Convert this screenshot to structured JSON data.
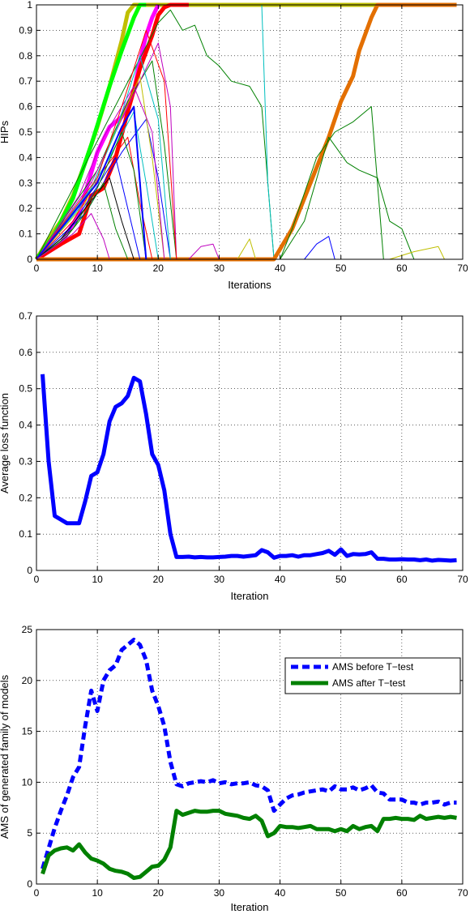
{
  "chart_data": [
    {
      "type": "line",
      "xlabel": "Iterations",
      "ylabel": "HIPs",
      "xlim": [
        0,
        70
      ],
      "ylim": [
        0,
        1
      ],
      "xticks": [
        "0",
        "10",
        "20",
        "30",
        "40",
        "50",
        "60",
        "70"
      ],
      "yticks": [
        "0",
        "0.1",
        "0.2",
        "0.3",
        "0.4",
        "0.5",
        "0.6",
        "0.7",
        "0.8",
        "0.9",
        "1"
      ],
      "grid": true,
      "series": [
        {
          "color": "#bfbf00",
          "width": 5,
          "x": [
            0,
            2,
            4,
            6,
            8,
            10,
            12,
            14,
            15,
            16,
            18,
            20,
            25,
            30,
            40,
            50,
            60,
            69
          ],
          "y": [
            0,
            0.08,
            0.15,
            0.25,
            0.38,
            0.52,
            0.68,
            0.86,
            0.97,
            1,
            1,
            1,
            1,
            1,
            1,
            1,
            1,
            1
          ]
        },
        {
          "color": "#00ff00",
          "width": 5,
          "x": [
            0,
            3,
            6,
            9,
            12,
            14,
            16,
            17,
            18
          ],
          "y": [
            0,
            0.1,
            0.24,
            0.45,
            0.68,
            0.82,
            0.95,
            1,
            1
          ]
        },
        {
          "color": "#ff00ff",
          "width": 5,
          "x": [
            0,
            4,
            7,
            10,
            12,
            14,
            16,
            17,
            18,
            19,
            20
          ],
          "y": [
            0,
            0.06,
            0.18,
            0.42,
            0.52,
            0.56,
            0.66,
            0.78,
            0.88,
            0.95,
            1
          ]
        },
        {
          "color": "#ff0000",
          "width": 5,
          "x": [
            0,
            4,
            7,
            9,
            11,
            13,
            15,
            17,
            19,
            20,
            21,
            22,
            25
          ],
          "y": [
            0,
            0.06,
            0.1,
            0.25,
            0.28,
            0.4,
            0.58,
            0.75,
            0.88,
            0.96,
            0.99,
            1,
            1
          ]
        },
        {
          "color": "#008000",
          "width": 1,
          "x": [
            0,
            20,
            22,
            24,
            26,
            28,
            30,
            32,
            35,
            37,
            38,
            39
          ],
          "y": [
            0,
            0.93,
            0.98,
            0.9,
            0.92,
            0.8,
            0.76,
            0.7,
            0.68,
            0.6,
            0.3,
            0
          ]
        },
        {
          "color": "#00bfbf",
          "width": 1,
          "x": [
            18,
            20,
            25,
            30,
            37,
            38,
            39
          ],
          "y": [
            1,
            1,
            1,
            1,
            1,
            0.3,
            0
          ]
        },
        {
          "color": "#e36f00",
          "width": 5,
          "x": [
            0,
            38,
            39,
            42,
            45,
            48,
            50,
            52,
            53,
            55,
            56,
            58,
            60,
            69
          ],
          "y": [
            0,
            0,
            0,
            0.12,
            0.3,
            0.48,
            0.62,
            0.72,
            0.82,
            0.95,
            1,
            1,
            1,
            1
          ]
        },
        {
          "color": "#008000",
          "width": 1,
          "x": [
            40,
            42,
            46,
            49,
            52,
            55,
            56,
            57
          ],
          "y": [
            0,
            0.12,
            0.4,
            0.5,
            0.54,
            0.6,
            0.3,
            0
          ]
        },
        {
          "color": "#008000",
          "width": 1,
          "x": [
            40,
            44,
            48,
            51,
            53,
            56,
            58,
            60,
            62
          ],
          "y": [
            0,
            0.15,
            0.48,
            0.38,
            0.35,
            0.32,
            0.15,
            0.12,
            0
          ]
        },
        {
          "color": "#bfbf00",
          "width": 1,
          "x": [
            58,
            62,
            66,
            67
          ],
          "y": [
            0,
            0.03,
            0.05,
            0
          ]
        },
        {
          "color": "#bf00bf",
          "width": 1,
          "x": [
            25,
            27,
            29,
            30
          ],
          "y": [
            0,
            0.05,
            0.06,
            0
          ]
        },
        {
          "color": "#0000ff",
          "width": 1,
          "x": [
            44,
            46,
            48,
            49
          ],
          "y": [
            0,
            0.06,
            0.09,
            0
          ]
        },
        {
          "color": "#bfbf00",
          "width": 1,
          "x": [
            33,
            35,
            36
          ],
          "y": [
            0,
            0.08,
            0
          ]
        },
        {
          "color": "#0000ff",
          "width": 1,
          "x": [
            0,
            8,
            14,
            18,
            20,
            22
          ],
          "y": [
            0,
            0.18,
            0.42,
            0.55,
            0.32,
            0
          ]
        },
        {
          "color": "#008000",
          "width": 1,
          "x": [
            0,
            10,
            15,
            19,
            21,
            23
          ],
          "y": [
            0,
            0.35,
            0.62,
            0.78,
            0.45,
            0
          ]
        },
        {
          "color": "#bf00bf",
          "width": 1,
          "x": [
            0,
            9,
            14,
            20,
            22,
            23
          ],
          "y": [
            0,
            0.3,
            0.55,
            0.85,
            0.6,
            0
          ]
        },
        {
          "color": "#00bfbf",
          "width": 1,
          "x": [
            0,
            7,
            12,
            16,
            18,
            20
          ],
          "y": [
            0,
            0.2,
            0.4,
            0.58,
            0.3,
            0
          ]
        },
        {
          "color": "#ff0000",
          "width": 1,
          "x": [
            0,
            6,
            11,
            15,
            17,
            19
          ],
          "y": [
            0,
            0.15,
            0.35,
            0.48,
            0.22,
            0
          ]
        },
        {
          "color": "#0000ff",
          "width": 1,
          "x": [
            0,
            5,
            9,
            13,
            15,
            17
          ],
          "y": [
            0,
            0.1,
            0.25,
            0.4,
            0.2,
            0
          ]
        },
        {
          "color": "#008000",
          "width": 1,
          "x": [
            0,
            6,
            10,
            14,
            16,
            18
          ],
          "y": [
            0,
            0.12,
            0.28,
            0.5,
            0.35,
            0
          ]
        },
        {
          "color": "#bfbf00",
          "width": 1,
          "x": [
            0,
            8,
            12,
            17,
            19,
            21
          ],
          "y": [
            0,
            0.22,
            0.45,
            0.72,
            0.4,
            0
          ]
        },
        {
          "color": "#000000",
          "width": 1,
          "x": [
            0,
            4,
            8,
            12,
            14,
            16
          ],
          "y": [
            0,
            0.08,
            0.2,
            0.32,
            0.15,
            0
          ]
        },
        {
          "color": "#bf00bf",
          "width": 1,
          "x": [
            0,
            7,
            11,
            16,
            19,
            21
          ],
          "y": [
            0,
            0.25,
            0.48,
            0.68,
            0.5,
            0
          ]
        },
        {
          "color": "#00bfbf",
          "width": 1,
          "x": [
            0,
            9,
            13,
            17,
            20,
            22
          ],
          "y": [
            0,
            0.28,
            0.5,
            0.8,
            0.55,
            0
          ]
        },
        {
          "color": "#ff0000",
          "width": 1,
          "x": [
            0,
            10,
            14,
            18,
            21,
            23
          ],
          "y": [
            0,
            0.32,
            0.6,
            0.9,
            0.7,
            0
          ]
        },
        {
          "color": "#0000ff",
          "width": 2,
          "x": [
            0,
            10,
            14,
            16,
            18
          ],
          "y": [
            0,
            0.3,
            0.52,
            0.6,
            0
          ]
        },
        {
          "color": "#008000",
          "width": 1,
          "x": [
            0,
            5,
            8,
            11,
            13,
            15
          ],
          "y": [
            0,
            0.09,
            0.18,
            0.3,
            0.12,
            0
          ]
        },
        {
          "color": "#bf00bf",
          "width": 1,
          "x": [
            0,
            3,
            6,
            9,
            11,
            12
          ],
          "y": [
            0,
            0.05,
            0.1,
            0.18,
            0.08,
            0
          ]
        }
      ]
    },
    {
      "type": "line",
      "xlabel": "Iteration",
      "ylabel": "Average loss function",
      "xlim": [
        0,
        70
      ],
      "ylim": [
        0,
        0.7
      ],
      "xticks": [
        "0",
        "10",
        "20",
        "30",
        "40",
        "50",
        "60",
        "70"
      ],
      "yticks": [
        "0",
        "0.1",
        "0.2",
        "0.3",
        "0.4",
        "0.5",
        "0.6",
        "0.7"
      ],
      "grid": true,
      "series": [
        {
          "color": "#0000ff",
          "width": 5,
          "x": [
            1,
            2,
            3,
            4,
            5,
            6,
            7,
            8,
            9,
            10,
            11,
            12,
            13,
            14,
            15,
            16,
            17,
            18,
            19,
            20,
            21,
            22,
            23,
            24,
            25,
            26,
            27,
            28,
            29,
            30,
            31,
            32,
            33,
            34,
            35,
            36,
            37,
            38,
            39,
            40,
            41,
            42,
            43,
            44,
            45,
            46,
            47,
            48,
            49,
            50,
            51,
            52,
            53,
            54,
            55,
            56,
            57,
            58,
            59,
            60,
            61,
            62,
            63,
            64,
            65,
            66,
            67,
            68,
            69
          ],
          "y": [
            0.54,
            0.3,
            0.15,
            0.14,
            0.13,
            0.13,
            0.13,
            0.19,
            0.26,
            0.27,
            0.32,
            0.41,
            0.45,
            0.46,
            0.48,
            0.53,
            0.52,
            0.43,
            0.32,
            0.29,
            0.22,
            0.1,
            0.037,
            0.037,
            0.038,
            0.036,
            0.037,
            0.036,
            0.036,
            0.037,
            0.038,
            0.04,
            0.04,
            0.038,
            0.04,
            0.042,
            0.056,
            0.05,
            0.035,
            0.04,
            0.04,
            0.042,
            0.038,
            0.042,
            0.042,
            0.045,
            0.048,
            0.054,
            0.043,
            0.058,
            0.04,
            0.045,
            0.044,
            0.045,
            0.05,
            0.032,
            0.032,
            0.03,
            0.03,
            0.031,
            0.03,
            0.03,
            0.028,
            0.03,
            0.027,
            0.029,
            0.028,
            0.027,
            0.028
          ]
        }
      ]
    },
    {
      "type": "line",
      "xlabel": "Iteration",
      "ylabel": "AMS of generated family of models",
      "xlim": [
        0,
        70
      ],
      "ylim": [
        0,
        25
      ],
      "xticks": [
        "0",
        "10",
        "20",
        "30",
        "40",
        "50",
        "60",
        "70"
      ],
      "yticks": [
        "0",
        "5",
        "10",
        "15",
        "20",
        "25"
      ],
      "grid": true,
      "legend_position": "top-right",
      "series": [
        {
          "name": "AMS before T−test",
          "color": "#0000ff",
          "width": 5,
          "dash": "9,5",
          "x": [
            1,
            2,
            3,
            4,
            5,
            6,
            7,
            8,
            9,
            10,
            11,
            12,
            13,
            14,
            15,
            16,
            17,
            18,
            19,
            20,
            21,
            22,
            23,
            24,
            25,
            26,
            27,
            28,
            29,
            30,
            31,
            32,
            33,
            34,
            35,
            36,
            37,
            38,
            39,
            40,
            41,
            42,
            43,
            44,
            45,
            46,
            47,
            48,
            49,
            50,
            51,
            52,
            53,
            54,
            55,
            56,
            57,
            58,
            59,
            60,
            61,
            62,
            63,
            64,
            65,
            66,
            67,
            68,
            69
          ],
          "y": [
            1.5,
            3.5,
            5.5,
            7.2,
            8.7,
            10.5,
            11.5,
            15.5,
            19,
            17,
            20,
            21,
            21.5,
            23,
            23.5,
            24,
            23.5,
            22,
            19,
            17.5,
            15.5,
            12,
            9.8,
            9.6,
            9.9,
            10,
            10.1,
            10,
            10.2,
            9.9,
            10,
            9.8,
            9.9,
            9.9,
            10,
            9.7,
            9.6,
            9.2,
            7.2,
            7.8,
            8.4,
            8.7,
            8.8,
            9,
            9.1,
            9.2,
            9.3,
            9.1,
            9.6,
            9.3,
            9.3,
            9.5,
            9.2,
            9.4,
            9.7,
            9,
            8.9,
            8.3,
            8.3,
            8.3,
            8,
            8,
            7.8,
            8,
            8,
            8.1,
            7.8,
            8,
            8
          ]
        },
        {
          "name": "AMS after T−test",
          "color": "#008000",
          "width": 5,
          "x": [
            1,
            2,
            3,
            4,
            5,
            6,
            7,
            8,
            9,
            10,
            11,
            12,
            13,
            14,
            15,
            16,
            17,
            18,
            19,
            20,
            21,
            22,
            23,
            24,
            25,
            26,
            27,
            28,
            29,
            30,
            31,
            32,
            33,
            34,
            35,
            36,
            37,
            38,
            39,
            40,
            41,
            42,
            43,
            44,
            45,
            46,
            47,
            48,
            49,
            50,
            51,
            52,
            53,
            54,
            55,
            56,
            57,
            58,
            59,
            60,
            61,
            62,
            63,
            64,
            65,
            66,
            67,
            68,
            69
          ],
          "y": [
            1,
            2.8,
            3.3,
            3.5,
            3.6,
            3.3,
            3.9,
            3.1,
            2.5,
            2.3,
            2,
            1.5,
            1.3,
            1.2,
            1,
            0.6,
            0.7,
            1.2,
            1.7,
            1.8,
            2.4,
            3.6,
            7.2,
            6.8,
            7,
            7.2,
            7.1,
            7.1,
            7.2,
            7.2,
            6.9,
            6.8,
            6.7,
            6.5,
            6.4,
            6.7,
            6.2,
            4.7,
            5,
            5.7,
            5.6,
            5.6,
            5.5,
            5.6,
            5.7,
            5.4,
            5.4,
            5.4,
            5.2,
            5.4,
            5.2,
            5.7,
            5.4,
            5.6,
            5.7,
            5.2,
            6.4,
            6.4,
            6.5,
            6.4,
            6.4,
            6.3,
            6.7,
            6.4,
            6.5,
            6.6,
            6.5,
            6.6,
            6.5
          ]
        }
      ]
    }
  ]
}
